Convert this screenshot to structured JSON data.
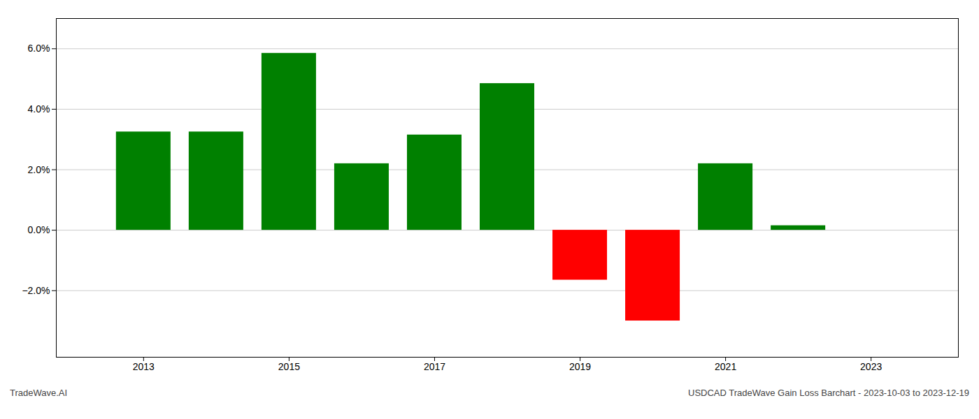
{
  "chart_data": {
    "type": "bar",
    "annotations": [
      "TradeWave.AI",
      "USDCAD TradeWave Gain Loss Barchart - 2023-10-03 to 2023-12-19"
    ],
    "x": [
      2013,
      2014,
      2015,
      2016,
      2017,
      2018,
      2019,
      2020,
      2021,
      2022
    ],
    "values": [
      3.25,
      3.25,
      5.85,
      2.2,
      3.15,
      4.85,
      -1.65,
      -3.0,
      2.2,
      0.15
    ],
    "colors": [
      "#008000",
      "#008000",
      "#008000",
      "#008000",
      "#008000",
      "#008000",
      "#ff0000",
      "#ff0000",
      "#008000",
      "#008000"
    ],
    "xlim": [
      2011.8,
      2024.2
    ],
    "xticks": [
      2013,
      2015,
      2017,
      2019,
      2021,
      2023
    ],
    "ylim": [
      -4.2,
      7.0
    ],
    "yticks": [
      {
        "value": -2.0,
        "label": "−2.0%"
      },
      {
        "value": 0.0,
        "label": "0.0%"
      },
      {
        "value": 2.0,
        "label": "2.0%"
      },
      {
        "value": 4.0,
        "label": "4.0%"
      },
      {
        "value": 6.0,
        "label": "6.0%"
      }
    ],
    "grid": true
  }
}
